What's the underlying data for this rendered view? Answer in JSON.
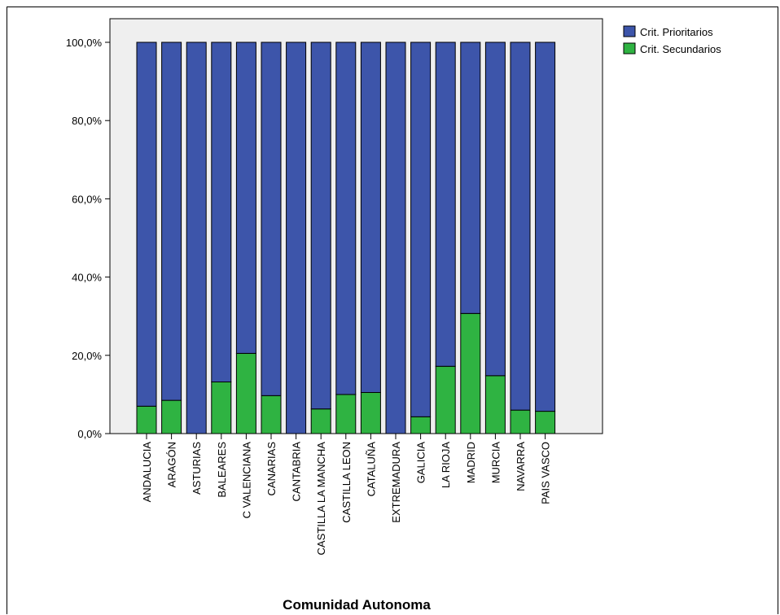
{
  "chart_data": {
    "type": "bar",
    "stacked": true,
    "title": "",
    "xlabel": "Comunidad Autonoma",
    "ylabel": "",
    "ylim": [
      0,
      100
    ],
    "yticks": [
      "0,0%",
      "20,0%",
      "40,0%",
      "60,0%",
      "80,0%",
      "100,0%"
    ],
    "ytick_values": [
      0,
      20,
      40,
      60,
      80,
      100
    ],
    "categories": [
      "ANDALUCIA",
      "ARAGÓN",
      "ASTURIAS",
      "BALEARES",
      "C VALENCIANA",
      "CANARIAS",
      "CANTABRIA",
      "CASTILLA LA MANCHA",
      "CASTILLA LEON",
      "CATALUÑA",
      "EXTREMADURA",
      "GALICIA",
      "LA RIOJA",
      "MADRID",
      "MURCIA",
      "NAVARRA",
      "PAIS VASCO"
    ],
    "series": [
      {
        "name": "Crit. Secundarios",
        "color": "#2fb342",
        "values": [
          7.0,
          8.5,
          0.0,
          13.2,
          20.5,
          9.7,
          0.0,
          6.3,
          10.0,
          10.5,
          0.0,
          4.3,
          17.2,
          30.7,
          14.8,
          6.0,
          5.7
        ]
      },
      {
        "name": "Crit. Prioritarios",
        "color": "#3d55aa",
        "values": [
          93.0,
          91.5,
          100.0,
          86.8,
          79.5,
          90.3,
          100.0,
          93.7,
          90.0,
          89.5,
          100.0,
          95.7,
          82.8,
          69.3,
          85.2,
          94.0,
          94.3
        ]
      }
    ],
    "legend": {
      "position": "top-right",
      "entries": [
        "Crit. Prioritarios",
        "Crit. Secundarios"
      ]
    },
    "plot_background": "#efefef",
    "grid": false
  }
}
